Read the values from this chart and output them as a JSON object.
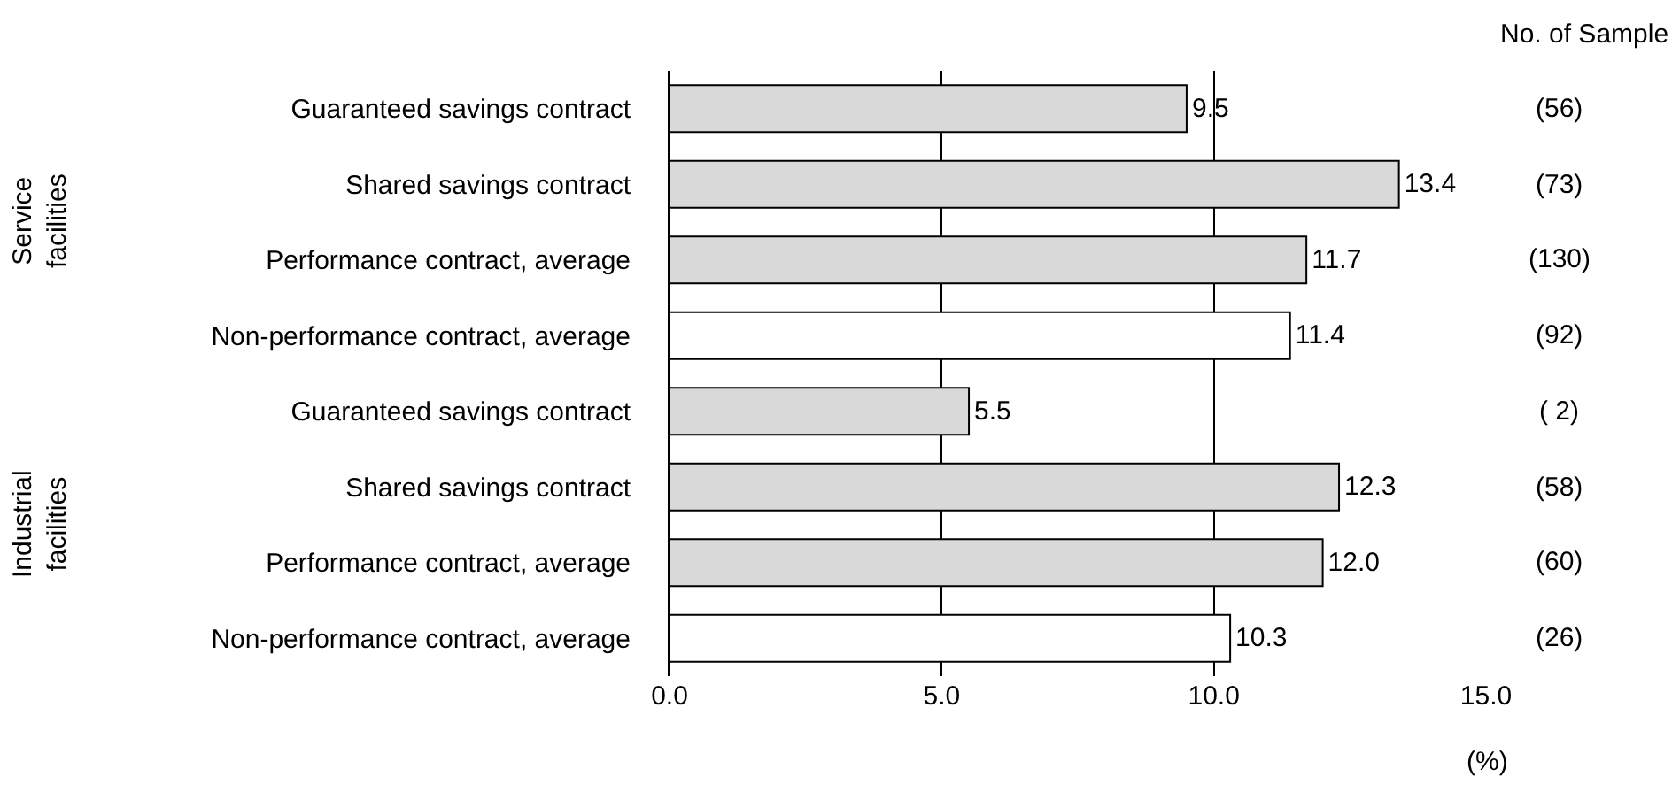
{
  "chart_data": {
    "type": "bar",
    "orientation": "horizontal",
    "xlabel": "(%)",
    "categories": [
      "Guaranteed savings contract",
      "Shared savings contract",
      "Performance contract, average",
      "Non-performance contract, average",
      "Guaranteed savings contract",
      "Shared savings contract",
      "Performance contract, average",
      "Non-performance contract, average"
    ],
    "values": [
      9.5,
      13.4,
      11.7,
      11.4,
      5.5,
      12.3,
      12.0,
      10.3
    ],
    "value_labels": [
      "9.5",
      "13.4",
      "11.7",
      "11.4",
      "5.5",
      "12.3",
      "12.0",
      "10.3"
    ],
    "colors": [
      "#d9d9d9",
      "#d9d9d9",
      "#d9d9d9",
      "#ffffff",
      "#d9d9d9",
      "#d9d9d9",
      "#d9d9d9",
      "#ffffff"
    ],
    "xlim": [
      0,
      15
    ],
    "xticks": [
      {
        "value": 0,
        "label": "0.0"
      },
      {
        "value": 5,
        "label": "5.0"
      },
      {
        "value": 10,
        "label": "10.0"
      },
      {
        "value": 15,
        "label": "15.0"
      }
    ],
    "grid": "x",
    "annotations": [
      "No. of Sample",
      "(56)",
      "(73)",
      "(130)",
      "(92)",
      "( 2)",
      "(58)",
      "(60)",
      "(26)",
      "Service facilities",
      "Industrial facilities"
    ]
  }
}
